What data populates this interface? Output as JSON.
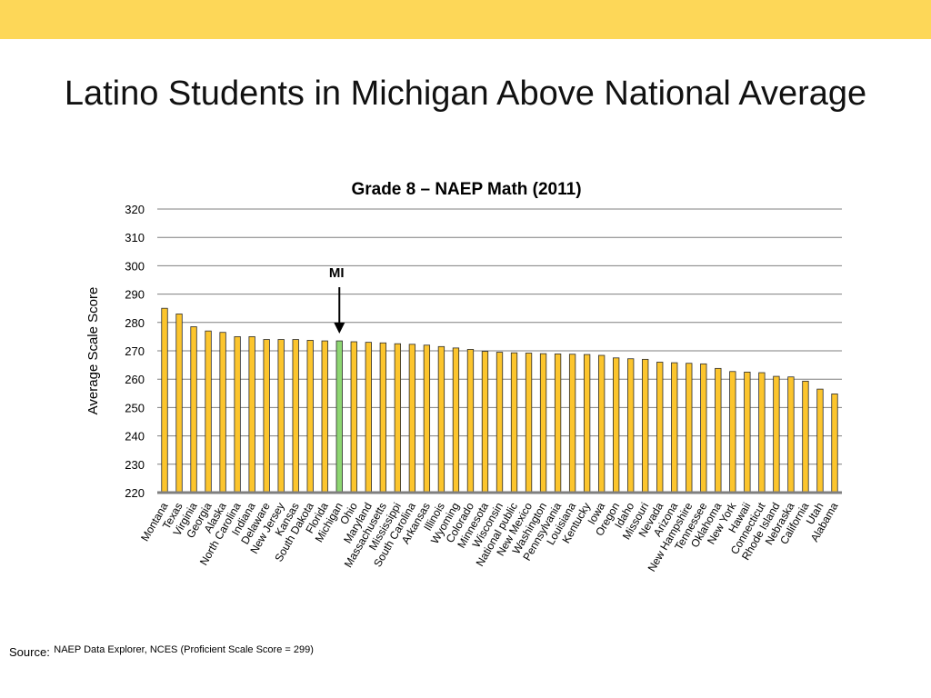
{
  "slide": {
    "title": "Latino Students in Michigan Above National Average",
    "source_label": "Source:",
    "source_text": "NAEP Data Explorer, NCES (Proficient Scale Score = 299)"
  },
  "colors": {
    "top_band": "#fdd758",
    "bar": "#fcc52d",
    "bar_outline": "#2b2b2b",
    "highlight_bar": "#8dd672"
  },
  "chart_data": {
    "type": "bar",
    "title": "Grade 8 – NAEP Math (2011)",
    "xlabel": "",
    "ylabel": "Average Scale Score",
    "ylim": [
      220,
      320
    ],
    "yticks": [
      220,
      230,
      240,
      250,
      260,
      270,
      280,
      290,
      300,
      310,
      320
    ],
    "grid": true,
    "legend": "none",
    "highlight": "Michigan",
    "annotation": "MI",
    "categories": [
      "Montana",
      "Texas",
      "Virginia",
      "Georgia",
      "Alaska",
      "North Carolina",
      "Indiana",
      "Delaware",
      "New Jersey",
      "Kansas",
      "South Dakota",
      "Florida",
      "Michigan",
      "Ohio",
      "Maryland",
      "Massachusetts",
      "Mississippi",
      "South Carolina",
      "Arkansas",
      "Illinois",
      "Wyoming",
      "Colorado",
      "Minnesota",
      "Wisconsin",
      "National public",
      "New Mexico",
      "Washington",
      "Pennsylvania",
      "Louisiana",
      "Kentucky",
      "Iowa",
      "Oregon",
      "Idaho",
      "Missouri",
      "Nevada",
      "Arizona",
      "New Hampshire",
      "Tennessee",
      "Oklahoma",
      "New York",
      "Hawaii",
      "Connecticut",
      "Rhode Island",
      "Nebraska",
      "California",
      "Utah",
      "Alabama"
    ],
    "values": [
      285,
      283,
      278.5,
      277,
      276.5,
      275,
      275,
      274,
      274,
      274,
      273.7,
      273.5,
      273.5,
      273.2,
      273,
      272.8,
      272.5,
      272.3,
      272,
      271.5,
      271,
      270.5,
      269.8,
      269.5,
      269.3,
      269.2,
      269,
      268.9,
      268.8,
      268.7,
      268.4,
      267.5,
      267.2,
      267,
      266,
      265.8,
      265.6,
      265.4,
      263.8,
      262.7,
      262.5,
      262.3,
      261,
      260.8,
      259.3,
      256.5,
      254.8
    ]
  }
}
